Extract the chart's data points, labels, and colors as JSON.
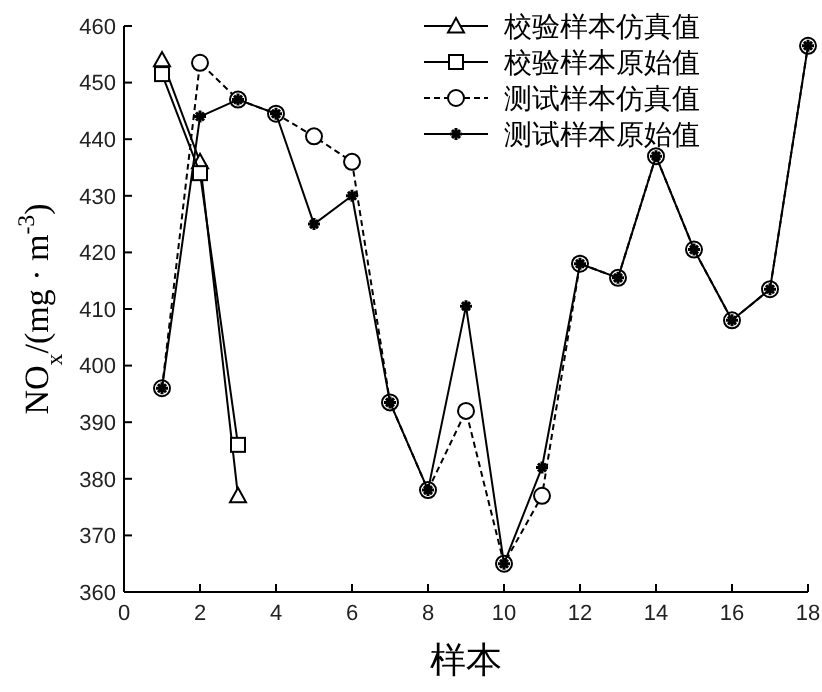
{
  "chart_data": {
    "type": "line",
    "xlabel": "样本",
    "ylabel": "NO$_{x}$/(mg · m$^{-3}$)",
    "xlim": [
      0,
      18
    ],
    "xticks": [
      0,
      2,
      4,
      6,
      8,
      10,
      12,
      14,
      16,
      18
    ],
    "ylim": [
      360,
      460
    ],
    "yticks": [
      360,
      370,
      380,
      390,
      400,
      410,
      420,
      430,
      440,
      450,
      460
    ],
    "grid": false,
    "legend": "top right",
    "series": [
      {
        "name": "校验样本仿真值",
        "color": "#000000",
        "marker": "triangle",
        "line_style": "solid",
        "x": [
          1,
          2,
          3
        ],
        "values": [
          454,
          436,
          377
        ]
      },
      {
        "name": "校验样本原始值",
        "color": "#000000",
        "marker": "square",
        "line_style": "solid",
        "x": [
          1,
          2,
          3
        ],
        "values": [
          451.5,
          434,
          386
        ]
      },
      {
        "name": "测试样本仿真值",
        "color": "#000000",
        "marker": "circle",
        "line_style": "dashed",
        "x": [
          1,
          2,
          3,
          4,
          5,
          6,
          7,
          8,
          9,
          10,
          11,
          12,
          13,
          14,
          15,
          16,
          17,
          18
        ],
        "values": [
          396,
          453.5,
          447,
          444.5,
          440.5,
          436,
          393.5,
          378,
          392,
          365,
          377,
          418,
          415.5,
          437,
          420.5,
          408,
          413.5,
          456.5
        ]
      },
      {
        "name": "测试样本原始值",
        "color": "#000000",
        "marker": "cross",
        "line_style": "solid",
        "x": [
          1,
          2,
          3,
          4,
          5,
          6,
          7,
          8,
          9,
          10,
          11,
          12,
          13,
          14,
          15,
          16,
          17,
          18
        ],
        "values": [
          396,
          444,
          447,
          444.5,
          425,
          430,
          393.5,
          378,
          410.5,
          365,
          382,
          418,
          415.5,
          437,
          420.5,
          408,
          413.5,
          456.5
        ]
      }
    ]
  }
}
